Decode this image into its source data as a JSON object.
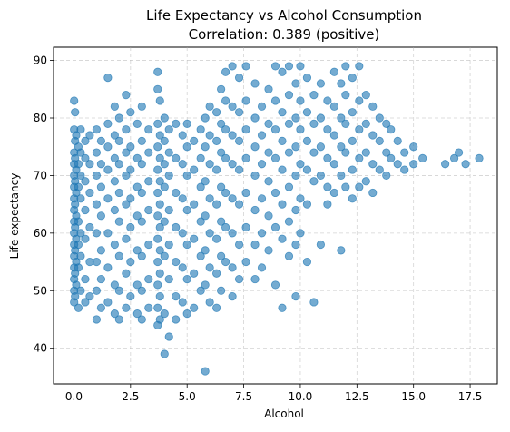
{
  "chart_data": {
    "type": "scatter",
    "title": "Life Expectancy vs Alcohol Consumption",
    "subtitle": "Correlation: 0.389 (positive)",
    "xlabel": "Alcohol",
    "ylabel": "Life expectancy",
    "xlim": [
      -0.9,
      18.7
    ],
    "ylim": [
      33.8,
      92.3
    ],
    "xticks": [
      0.0,
      2.5,
      5.0,
      7.5,
      10.0,
      12.5,
      15.0,
      17.5
    ],
    "xtick_labels": [
      "0.0",
      "2.5",
      "5.0",
      "7.5",
      "10.0",
      "12.5",
      "15.0",
      "17.5"
    ],
    "yticks": [
      40,
      50,
      60,
      70,
      80,
      90
    ],
    "ytick_labels": [
      "40",
      "50",
      "60",
      "70",
      "80",
      "90"
    ],
    "grid": true,
    "marker_color": "#1f77b4",
    "points": [
      [
        0.01,
        83
      ],
      [
        0.01,
        78
      ],
      [
        0.01,
        74
      ],
      [
        0.01,
        72
      ],
      [
        0.01,
        70
      ],
      [
        0.01,
        68
      ],
      [
        0.01,
        66
      ],
      [
        0.01,
        64
      ],
      [
        0.01,
        62
      ],
      [
        0.01,
        60
      ],
      [
        0.01,
        58
      ],
      [
        0.01,
        56
      ],
      [
        0.01,
        54
      ],
      [
        0.01,
        52
      ],
      [
        0.01,
        50
      ],
      [
        0.01,
        48
      ],
      [
        0.05,
        81
      ],
      [
        0.05,
        76
      ],
      [
        0.05,
        73
      ],
      [
        0.05,
        69
      ],
      [
        0.05,
        65
      ],
      [
        0.05,
        61
      ],
      [
        0.05,
        57
      ],
      [
        0.05,
        53
      ],
      [
        0.05,
        49
      ],
      [
        0.1,
        77
      ],
      [
        0.1,
        71
      ],
      [
        0.1,
        67
      ],
      [
        0.1,
        63
      ],
      [
        0.1,
        59
      ],
      [
        0.1,
        55
      ],
      [
        0.1,
        51
      ],
      [
        0.2,
        75
      ],
      [
        0.2,
        72
      ],
      [
        0.2,
        68
      ],
      [
        0.2,
        62
      ],
      [
        0.2,
        58
      ],
      [
        0.2,
        54
      ],
      [
        0.2,
        47
      ],
      [
        0.3,
        78
      ],
      [
        0.3,
        74
      ],
      [
        0.3,
        70
      ],
      [
        0.3,
        66
      ],
      [
        0.3,
        60
      ],
      [
        0.3,
        56
      ],
      [
        0.3,
        50
      ],
      [
        0.5,
        76
      ],
      [
        0.5,
        73
      ],
      [
        0.5,
        69
      ],
      [
        0.5,
        64
      ],
      [
        0.5,
        59
      ],
      [
        0.5,
        52
      ],
      [
        0.5,
        48
      ],
      [
        0.7,
        77
      ],
      [
        0.7,
        72
      ],
      [
        0.7,
        67
      ],
      [
        0.7,
        61
      ],
      [
        0.7,
        55
      ],
      [
        0.7,
        49
      ],
      [
        1.0,
        78
      ],
      [
        1.0,
        74
      ],
      [
        1.0,
        70
      ],
      [
        1.0,
        65
      ],
      [
        1.0,
        60
      ],
      [
        1.0,
        55
      ],
      [
        1.0,
        50
      ],
      [
        1.0,
        45
      ],
      [
        1.2,
        76
      ],
      [
        1.2,
        72
      ],
      [
        1.2,
        68
      ],
      [
        1.2,
        63
      ],
      [
        1.2,
        57
      ],
      [
        1.2,
        52
      ],
      [
        1.2,
        47
      ],
      [
        1.5,
        87
      ],
      [
        1.5,
        79
      ],
      [
        1.5,
        75
      ],
      [
        1.5,
        71
      ],
      [
        1.5,
        66
      ],
      [
        1.5,
        60
      ],
      [
        1.5,
        54
      ],
      [
        1.5,
        48
      ],
      [
        1.8,
        82
      ],
      [
        1.8,
        77
      ],
      [
        1.8,
        73
      ],
      [
        1.8,
        69
      ],
      [
        1.8,
        64
      ],
      [
        1.8,
        58
      ],
      [
        1.8,
        51
      ],
      [
        1.8,
        46
      ],
      [
        2.0,
        80
      ],
      [
        2.0,
        76
      ],
      [
        2.0,
        72
      ],
      [
        2.0,
        67
      ],
      [
        2.0,
        62
      ],
      [
        2.0,
        56
      ],
      [
        2.0,
        50
      ],
      [
        2.0,
        45
      ],
      [
        2.3,
        84
      ],
      [
        2.3,
        78
      ],
      [
        2.3,
        74
      ],
      [
        2.3,
        70
      ],
      [
        2.3,
        65
      ],
      [
        2.3,
        59
      ],
      [
        2.3,
        53
      ],
      [
        2.3,
        47
      ],
      [
        2.5,
        81
      ],
      [
        2.5,
        75
      ],
      [
        2.5,
        71
      ],
      [
        2.5,
        66
      ],
      [
        2.5,
        61
      ],
      [
        2.5,
        55
      ],
      [
        2.5,
        49
      ],
      [
        2.8,
        79
      ],
      [
        2.8,
        73
      ],
      [
        2.8,
        68
      ],
      [
        2.8,
        63
      ],
      [
        2.8,
        57
      ],
      [
        2.8,
        51
      ],
      [
        2.8,
        46
      ],
      [
        3.0,
        82
      ],
      [
        3.0,
        76
      ],
      [
        3.0,
        72
      ],
      [
        3.0,
        67
      ],
      [
        3.0,
        62
      ],
      [
        3.0,
        56
      ],
      [
        3.0,
        50
      ],
      [
        3.0,
        45
      ],
      [
        3.3,
        78
      ],
      [
        3.3,
        74
      ],
      [
        3.3,
        69
      ],
      [
        3.3,
        64
      ],
      [
        3.3,
        58
      ],
      [
        3.3,
        52
      ],
      [
        3.3,
        47
      ],
      [
        3.7,
        88
      ],
      [
        3.7,
        85
      ],
      [
        3.7,
        79
      ],
      [
        3.7,
        75
      ],
      [
        3.7,
        71
      ],
      [
        3.7,
        67
      ],
      [
        3.7,
        63
      ],
      [
        3.7,
        59
      ],
      [
        3.7,
        55
      ],
      [
        3.7,
        51
      ],
      [
        3.7,
        47
      ],
      [
        3.7,
        44
      ],
      [
        3.8,
        83
      ],
      [
        3.8,
        77
      ],
      [
        3.8,
        73
      ],
      [
        3.8,
        69
      ],
      [
        3.8,
        65
      ],
      [
        3.8,
        61
      ],
      [
        3.8,
        57
      ],
      [
        3.8,
        53
      ],
      [
        3.8,
        49
      ],
      [
        3.8,
        45
      ],
      [
        4.0,
        80
      ],
      [
        4.0,
        76
      ],
      [
        4.0,
        72
      ],
      [
        4.0,
        68
      ],
      [
        4.0,
        62
      ],
      [
        4.0,
        56
      ],
      [
        4.0,
        46
      ],
      [
        4.0,
        39
      ],
      [
        4.2,
        78
      ],
      [
        4.2,
        74
      ],
      [
        4.2,
        70
      ],
      [
        4.2,
        64
      ],
      [
        4.2,
        58
      ],
      [
        4.2,
        52
      ],
      [
        4.2,
        42
      ],
      [
        4.5,
        79
      ],
      [
        4.5,
        73
      ],
      [
        4.5,
        67
      ],
      [
        4.5,
        61
      ],
      [
        4.5,
        55
      ],
      [
        4.5,
        49
      ],
      [
        4.5,
        45
      ],
      [
        4.8,
        77
      ],
      [
        4.8,
        72
      ],
      [
        4.8,
        66
      ],
      [
        4.8,
        60
      ],
      [
        4.8,
        54
      ],
      [
        4.8,
        48
      ],
      [
        5.0,
        79
      ],
      [
        5.0,
        75
      ],
      [
        5.0,
        70
      ],
      [
        5.0,
        64
      ],
      [
        5.0,
        58
      ],
      [
        5.0,
        52
      ],
      [
        5.0,
        46
      ],
      [
        5.3,
        76
      ],
      [
        5.3,
        71
      ],
      [
        5.3,
        65
      ],
      [
        5.3,
        59
      ],
      [
        5.3,
        53
      ],
      [
        5.3,
        47
      ],
      [
        5.6,
        78
      ],
      [
        5.6,
        73
      ],
      [
        5.6,
        68
      ],
      [
        5.6,
        62
      ],
      [
        5.6,
        56
      ],
      [
        5.6,
        50
      ],
      [
        5.8,
        80
      ],
      [
        5.8,
        75
      ],
      [
        5.8,
        69
      ],
      [
        5.8,
        63
      ],
      [
        5.8,
        57
      ],
      [
        5.8,
        51
      ],
      [
        5.8,
        36
      ],
      [
        6.0,
        82
      ],
      [
        6.0,
        77
      ],
      [
        6.0,
        72
      ],
      [
        6.0,
        66
      ],
      [
        6.0,
        60
      ],
      [
        6.0,
        54
      ],
      [
        6.0,
        48
      ],
      [
        6.3,
        81
      ],
      [
        6.3,
        76
      ],
      [
        6.3,
        71
      ],
      [
        6.3,
        65
      ],
      [
        6.3,
        59
      ],
      [
        6.3,
        53
      ],
      [
        6.3,
        47
      ],
      [
        6.5,
        85
      ],
      [
        6.5,
        79
      ],
      [
        6.5,
        74
      ],
      [
        6.5,
        68
      ],
      [
        6.5,
        62
      ],
      [
        6.5,
        56
      ],
      [
        6.5,
        50
      ],
      [
        6.7,
        88
      ],
      [
        6.7,
        83
      ],
      [
        6.7,
        78
      ],
      [
        6.7,
        73
      ],
      [
        6.7,
        67
      ],
      [
        6.7,
        61
      ],
      [
        6.7,
        55
      ],
      [
        7.0,
        89
      ],
      [
        7.0,
        82
      ],
      [
        7.0,
        77
      ],
      [
        7.0,
        72
      ],
      [
        7.0,
        66
      ],
      [
        7.0,
        60
      ],
      [
        7.0,
        54
      ],
      [
        7.0,
        49
      ],
      [
        7.3,
        87
      ],
      [
        7.3,
        81
      ],
      [
        7.3,
        76
      ],
      [
        7.3,
        71
      ],
      [
        7.3,
        65
      ],
      [
        7.3,
        58
      ],
      [
        7.3,
        52
      ],
      [
        7.6,
        89
      ],
      [
        7.6,
        83
      ],
      [
        7.6,
        78
      ],
      [
        7.6,
        73
      ],
      [
        7.6,
        67
      ],
      [
        7.6,
        61
      ],
      [
        7.6,
        55
      ],
      [
        8.0,
        86
      ],
      [
        8.0,
        80
      ],
      [
        8.0,
        75
      ],
      [
        8.0,
        70
      ],
      [
        8.0,
        64
      ],
      [
        8.0,
        58
      ],
      [
        8.0,
        52
      ],
      [
        8.3,
        82
      ],
      [
        8.3,
        77
      ],
      [
        8.3,
        72
      ],
      [
        8.3,
        66
      ],
      [
        8.3,
        60
      ],
      [
        8.3,
        54
      ],
      [
        8.6,
        85
      ],
      [
        8.6,
        79
      ],
      [
        8.6,
        74
      ],
      [
        8.6,
        69
      ],
      [
        8.6,
        63
      ],
      [
        8.6,
        57
      ],
      [
        8.9,
        89
      ],
      [
        8.9,
        83
      ],
      [
        8.9,
        78
      ],
      [
        8.9,
        73
      ],
      [
        8.9,
        67
      ],
      [
        8.9,
        61
      ],
      [
        8.9,
        51
      ],
      [
        9.2,
        88
      ],
      [
        9.2,
        81
      ],
      [
        9.2,
        76
      ],
      [
        9.2,
        71
      ],
      [
        9.2,
        65
      ],
      [
        9.2,
        59
      ],
      [
        9.2,
        47
      ],
      [
        9.5,
        89
      ],
      [
        9.5,
        84
      ],
      [
        9.5,
        79
      ],
      [
        9.5,
        74
      ],
      [
        9.5,
        68
      ],
      [
        9.5,
        62
      ],
      [
        9.5,
        56
      ],
      [
        9.8,
        86
      ],
      [
        9.8,
        80
      ],
      [
        9.8,
        75
      ],
      [
        9.8,
        70
      ],
      [
        9.8,
        64
      ],
      [
        9.8,
        58
      ],
      [
        9.8,
        49
      ],
      [
        10.0,
        89
      ],
      [
        10.0,
        83
      ],
      [
        10.0,
        78
      ],
      [
        10.0,
        72
      ],
      [
        10.0,
        66
      ],
      [
        10.0,
        60
      ],
      [
        10.3,
        87
      ],
      [
        10.3,
        81
      ],
      [
        10.3,
        76
      ],
      [
        10.3,
        71
      ],
      [
        10.3,
        65
      ],
      [
        10.3,
        55
      ],
      [
        10.6,
        84
      ],
      [
        10.6,
        79
      ],
      [
        10.6,
        74
      ],
      [
        10.6,
        69
      ],
      [
        10.6,
        48
      ],
      [
        10.9,
        86
      ],
      [
        10.9,
        80
      ],
      [
        10.9,
        75
      ],
      [
        10.9,
        70
      ],
      [
        10.9,
        58
      ],
      [
        11.2,
        83
      ],
      [
        11.2,
        78
      ],
      [
        11.2,
        73
      ],
      [
        11.2,
        68
      ],
      [
        11.2,
        65
      ],
      [
        11.5,
        88
      ],
      [
        11.5,
        82
      ],
      [
        11.5,
        77
      ],
      [
        11.5,
        72
      ],
      [
        11.5,
        67
      ],
      [
        11.8,
        86
      ],
      [
        11.8,
        80
      ],
      [
        11.8,
        75
      ],
      [
        11.8,
        70
      ],
      [
        11.8,
        57
      ],
      [
        12.0,
        89
      ],
      [
        12.0,
        84
      ],
      [
        12.0,
        79
      ],
      [
        12.0,
        74
      ],
      [
        12.0,
        68
      ],
      [
        12.3,
        87
      ],
      [
        12.3,
        81
      ],
      [
        12.3,
        76
      ],
      [
        12.3,
        71
      ],
      [
        12.3,
        66
      ],
      [
        12.6,
        89
      ],
      [
        12.6,
        83
      ],
      [
        12.6,
        78
      ],
      [
        12.6,
        73
      ],
      [
        12.6,
        68
      ],
      [
        12.9,
        84
      ],
      [
        12.9,
        79
      ],
      [
        12.9,
        74
      ],
      [
        12.9,
        69
      ],
      [
        13.2,
        82
      ],
      [
        13.2,
        77
      ],
      [
        13.2,
        72
      ],
      [
        13.2,
        67
      ],
      [
        13.5,
        80
      ],
      [
        13.5,
        76
      ],
      [
        13.5,
        71
      ],
      [
        13.8,
        79
      ],
      [
        13.8,
        74
      ],
      [
        13.8,
        70
      ],
      [
        14.0,
        78
      ],
      [
        14.0,
        73
      ],
      [
        14.3,
        76
      ],
      [
        14.3,
        72
      ],
      [
        14.6,
        74
      ],
      [
        14.6,
        71
      ],
      [
        15.0,
        75
      ],
      [
        15.0,
        72
      ],
      [
        15.4,
        73
      ],
      [
        16.4,
        72
      ],
      [
        16.8,
        73
      ],
      [
        17.0,
        74
      ],
      [
        17.3,
        72
      ],
      [
        17.9,
        73
      ]
    ]
  }
}
